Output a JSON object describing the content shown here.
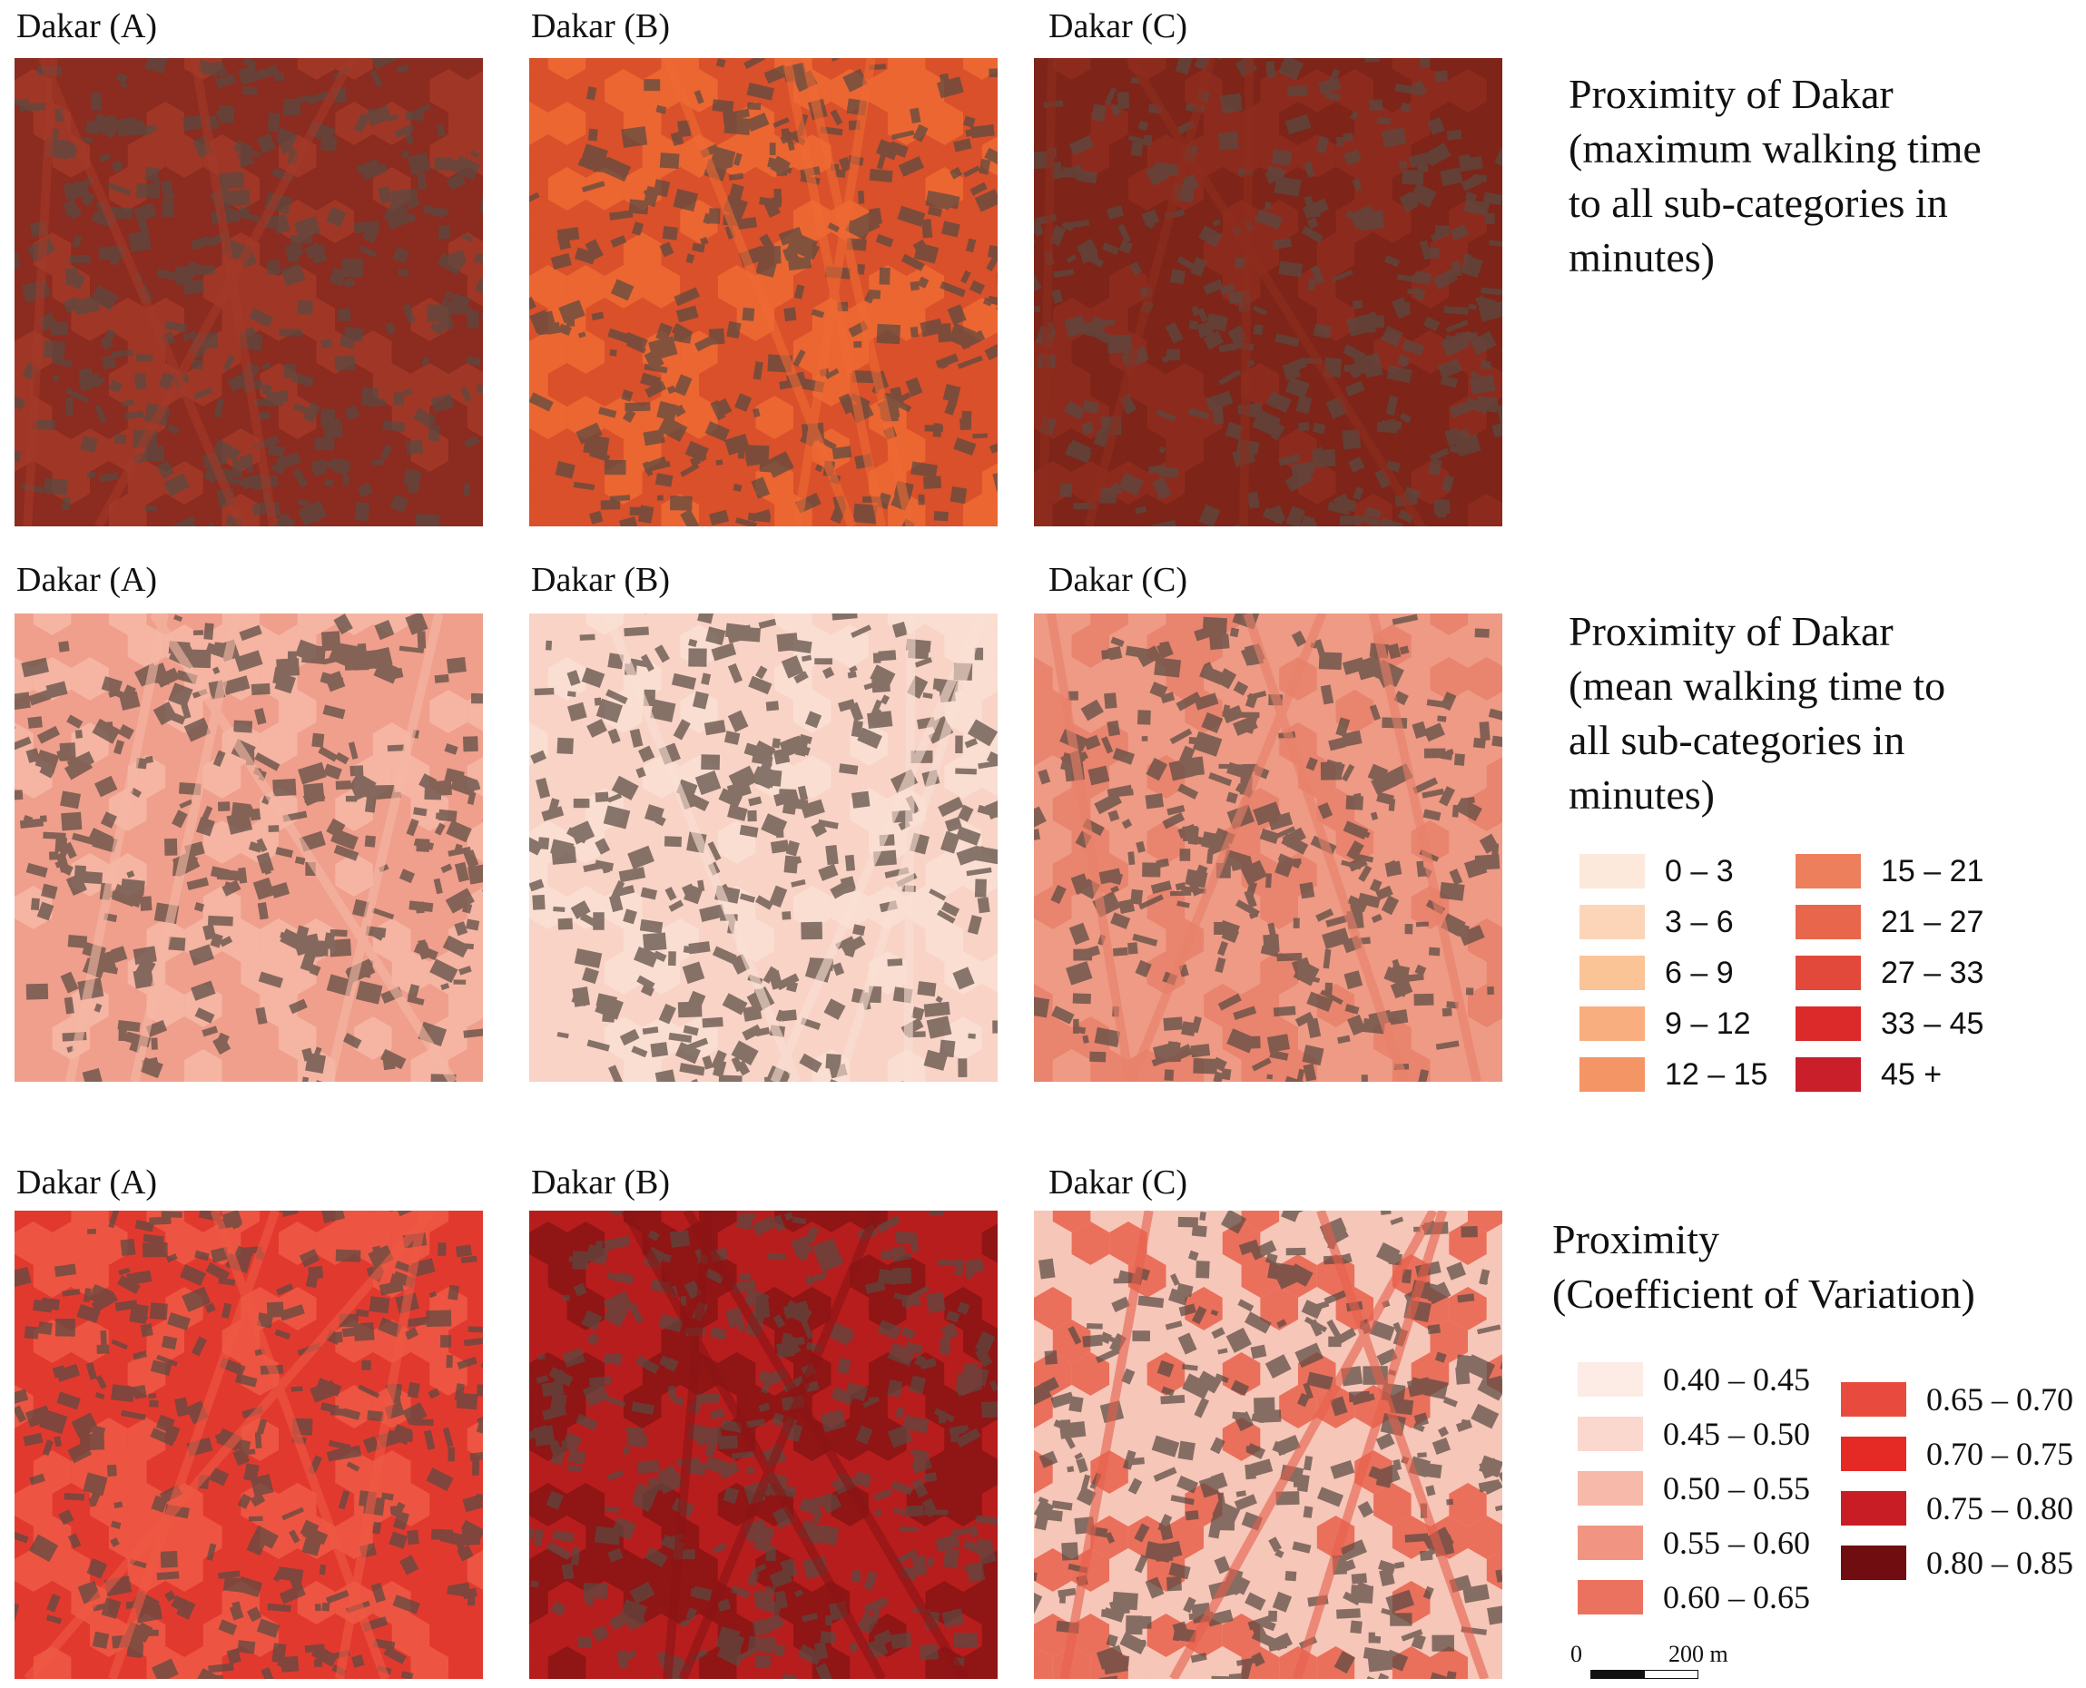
{
  "rows": [
    {
      "title_lines": [
        "Proximity of Dakar",
        "(maximum walking time",
        "to all sub-categories in",
        "minutes)"
      ],
      "panels": [
        {
          "label": "Dakar (A)",
          "fill": "#8c2b1f",
          "alt": "#a33a28"
        },
        {
          "label": "Dakar (B)",
          "fill": "#d9502a",
          "alt": "#ef6a34"
        },
        {
          "label": "Dakar (C)",
          "fill": "#7e2418",
          "alt": "#8e2d1f"
        }
      ]
    },
    {
      "title_lines": [
        "Proximity of Dakar",
        "(mean walking time to",
        "all sub-categories in",
        "minutes)"
      ],
      "panels": [
        {
          "label": "Dakar (A)",
          "fill": "#ef9f8c",
          "alt": "#f6b9a6"
        },
        {
          "label": "Dakar (B)",
          "fill": "#f8d3c6",
          "alt": "#fadfd4"
        },
        {
          "label": "Dakar (C)",
          "fill": "#ee9a85",
          "alt": "#e8806a"
        }
      ]
    },
    {
      "title_lines": [
        "Proximity",
        "(Coefficient of Variation)"
      ],
      "panels": [
        {
          "label": "Dakar (A)",
          "fill": "#e2392f",
          "alt": "#ee5a45"
        },
        {
          "label": "Dakar (B)",
          "fill": "#b71d1d",
          "alt": "#8a1414"
        },
        {
          "label": "Dakar (C)",
          "fill": "#f6c6b8",
          "alt": "#e7604b"
        }
      ]
    }
  ],
  "legend_time": {
    "items": [
      {
        "label": "0 – 3",
        "color": "#fde9dc"
      },
      {
        "label": "3 – 6",
        "color": "#fcd5b8"
      },
      {
        "label": "6 – 9",
        "color": "#fbc497"
      },
      {
        "label": "9 – 12",
        "color": "#f9ae7f"
      },
      {
        "label": "12 – 15",
        "color": "#f49566"
      },
      {
        "label": "15 – 21",
        "color": "#ee7f5c"
      },
      {
        "label": "21 – 27",
        "color": "#e8674c"
      },
      {
        "label": "27 – 33",
        "color": "#e3493a"
      },
      {
        "label": "33 – 45",
        "color": "#dc2a2a"
      },
      {
        "label": "45 +",
        "color": "#c81f2a"
      }
    ]
  },
  "legend_cv": {
    "items": [
      {
        "label": "0.40 – 0.45",
        "color": "#fdebe6"
      },
      {
        "label": "0.45 – 0.50",
        "color": "#fad8ce"
      },
      {
        "label": "0.50 – 0.55",
        "color": "#f6b9aa"
      },
      {
        "label": "0.55 – 0.60",
        "color": "#f19582"
      },
      {
        "label": "0.60 – 0.65",
        "color": "#ec7260"
      },
      {
        "label": "0.65 – 0.70",
        "color": "#e84b3d"
      },
      {
        "label": "0.70 – 0.75",
        "color": "#e52a26"
      },
      {
        "label": "0.75 – 0.80",
        "color": "#c81d24"
      },
      {
        "label": "0.80 – 0.85",
        "color": "#6f0d10"
      }
    ]
  },
  "scale": {
    "start_label": "0",
    "end_label": "200 m"
  },
  "building_color": "#5a4a42"
}
